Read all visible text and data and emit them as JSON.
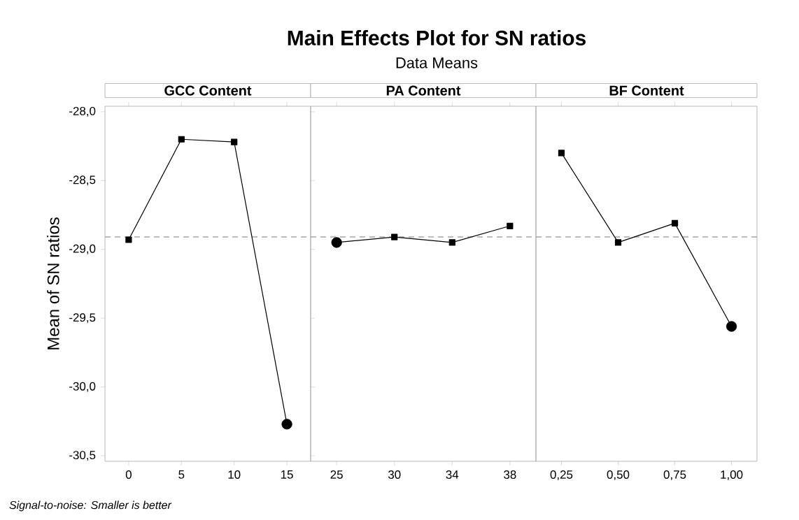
{
  "chart_data": [
    {
      "type": "other",
      "title": "Main Effects Plot for SN ratios",
      "subtitle": "Data Means",
      "annotations": [
        "Signal-to-noise: Smaller is better"
      ]
    },
    {
      "type": "line",
      "title": "GCC Content",
      "ylabel": "Mean of SN ratios",
      "categories": [
        "0",
        "5",
        "10",
        "15"
      ],
      "marker": "square",
      "grid": false,
      "ylim": [
        -30.54,
        -27.96
      ],
      "yticks": [
        {
          "value": -28,
          "label": "-28,0"
        },
        {
          "value": -28.5,
          "label": "-28,5"
        },
        {
          "value": -29,
          "label": "-29,0"
        },
        {
          "value": -29.5,
          "label": "-29,5"
        },
        {
          "value": -30,
          "label": "-30,0"
        },
        {
          "value": -30.5,
          "label": "-30,5"
        }
      ],
      "series": [
        {
          "color": "#000000",
          "values": [
            -28.93,
            -28.2,
            -28.22,
            -30.27
          ]
        },
        {
          "type": "scatter",
          "marker": "circle",
          "color": "#000000",
          "values": [
            null,
            null,
            null,
            -30.27
          ]
        }
      ],
      "ref_lines": [
        {
          "axis": "y",
          "value": -28.91,
          "color": "#a6a6a6",
          "line_style": "dashed"
        }
      ]
    },
    {
      "type": "line",
      "title": "PA Content",
      "categories": [
        "25",
        "30",
        "34",
        "38"
      ],
      "marker": "square",
      "grid": false,
      "tick_labels": "x",
      "ylim": [
        -30.54,
        -27.96
      ],
      "series": [
        {
          "color": "#000000",
          "values": [
            -28.95,
            -28.91,
            -28.95,
            -28.83
          ]
        },
        {
          "type": "scatter",
          "marker": "circle",
          "color": "#000000",
          "values": [
            -28.95,
            null,
            null,
            null
          ]
        }
      ],
      "ref_lines": [
        {
          "axis": "y",
          "value": -28.91,
          "color": "#a6a6a6",
          "line_style": "dashed"
        }
      ]
    },
    {
      "type": "line",
      "title": "BF Content",
      "categories": [
        "0,25",
        "0,50",
        "0,75",
        "1,00"
      ],
      "marker": "square",
      "grid": false,
      "tick_labels": "x",
      "ylim": [
        -30.54,
        -27.96
      ],
      "series": [
        {
          "color": "#000000",
          "values": [
            -28.3,
            -28.95,
            -28.81,
            -29.56
          ]
        },
        {
          "type": "scatter",
          "marker": "circle",
          "color": "#000000",
          "values": [
            null,
            null,
            null,
            -29.56
          ]
        }
      ],
      "ref_lines": [
        {
          "axis": "y",
          "value": -28.91,
          "color": "#a6a6a6",
          "line_style": "dashed"
        }
      ]
    }
  ]
}
